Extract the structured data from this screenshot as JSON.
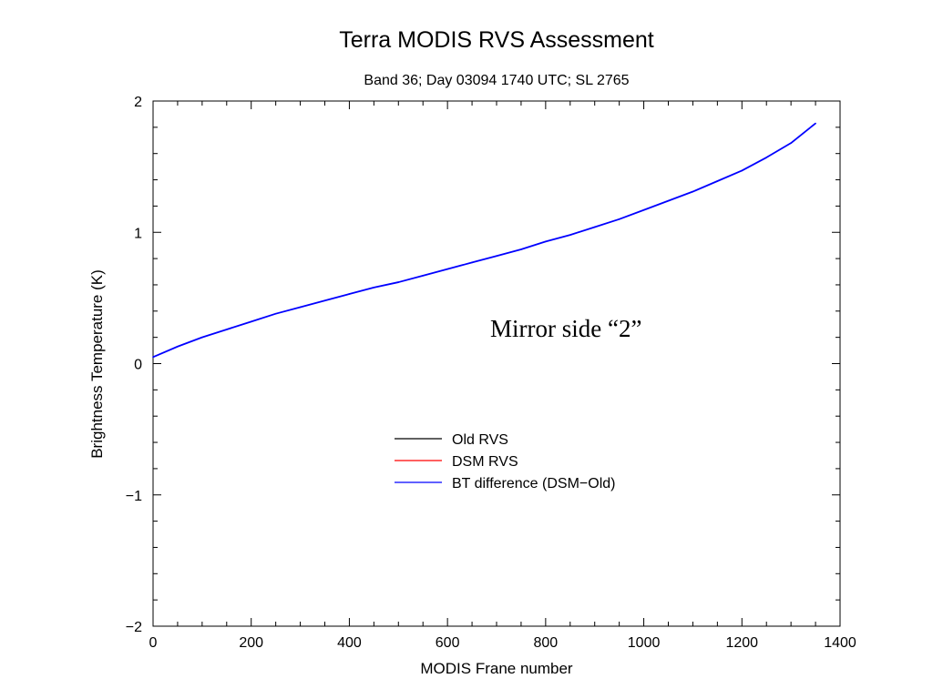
{
  "chart_data": {
    "type": "line",
    "title": "Terra MODIS RVS Assessment",
    "subtitle": "Band 36; Day 03094 1740 UTC; SL 2765",
    "xlabel": "MODIS Frane number",
    "ylabel": "Brightness Temperature (K)",
    "xlim": [
      0,
      1400
    ],
    "ylim": [
      -2,
      2
    ],
    "x_ticks": [
      0,
      200,
      400,
      600,
      800,
      1000,
      1200,
      1400
    ],
    "y_ticks": [
      -2,
      -1,
      0,
      1,
      2
    ],
    "grid": false,
    "legend_placement": "center",
    "annotation": "Mirror side “2”",
    "series": [
      {
        "name": "Old RVS",
        "color": "#000000",
        "x": [],
        "y": []
      },
      {
        "name": "DSM RVS",
        "color": "#ff0000",
        "x": [],
        "y": []
      },
      {
        "name": "BT difference (DSM−Old)",
        "color": "#0000ff",
        "x": [
          0,
          50,
          100,
          150,
          200,
          250,
          300,
          350,
          400,
          450,
          500,
          550,
          600,
          650,
          700,
          750,
          800,
          850,
          900,
          950,
          1000,
          1050,
          1100,
          1150,
          1200,
          1250,
          1300,
          1350
        ],
        "y": [
          0.05,
          0.13,
          0.2,
          0.26,
          0.32,
          0.38,
          0.43,
          0.48,
          0.53,
          0.58,
          0.62,
          0.67,
          0.72,
          0.77,
          0.82,
          0.87,
          0.93,
          0.98,
          1.04,
          1.1,
          1.17,
          1.24,
          1.31,
          1.39,
          1.47,
          1.57,
          1.68,
          1.83
        ]
      }
    ]
  }
}
